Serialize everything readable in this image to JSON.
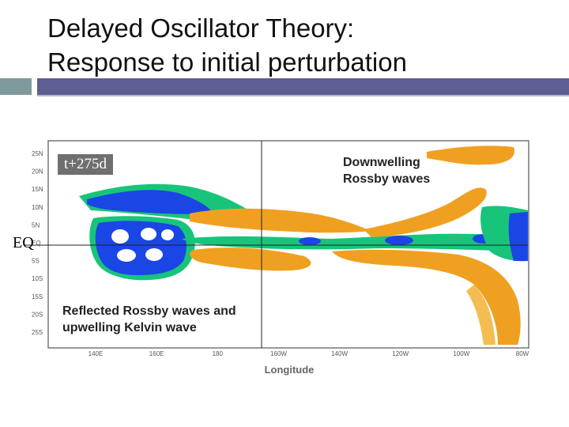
{
  "slide": {
    "title_line1": "Delayed Oscillator Theory:",
    "title_line2": "Response to initial perturbation"
  },
  "figure": {
    "time_label": "t+275d",
    "eq_label": "EQ",
    "annotation_top": [
      "Downwelling",
      "Rossby waves"
    ],
    "annotation_bottom": [
      "Reflected Rossby waves and",
      "upwelling Kelvin wave"
    ],
    "y_ticks": [
      "25N",
      "20N",
      "15N",
      "10N",
      "5N",
      "EQ",
      "5S",
      "10S",
      "15S",
      "20S",
      "25S"
    ],
    "x_ticks": [
      "140E",
      "160E",
      "180",
      "160W",
      "140W",
      "120W",
      "100W",
      "80W"
    ],
    "xlabel": "Longitude",
    "colors": {
      "blue": "#1a46e6",
      "green": "#18c47a",
      "orange": "#f0a020",
      "light_orange": "#f4bd52"
    }
  }
}
